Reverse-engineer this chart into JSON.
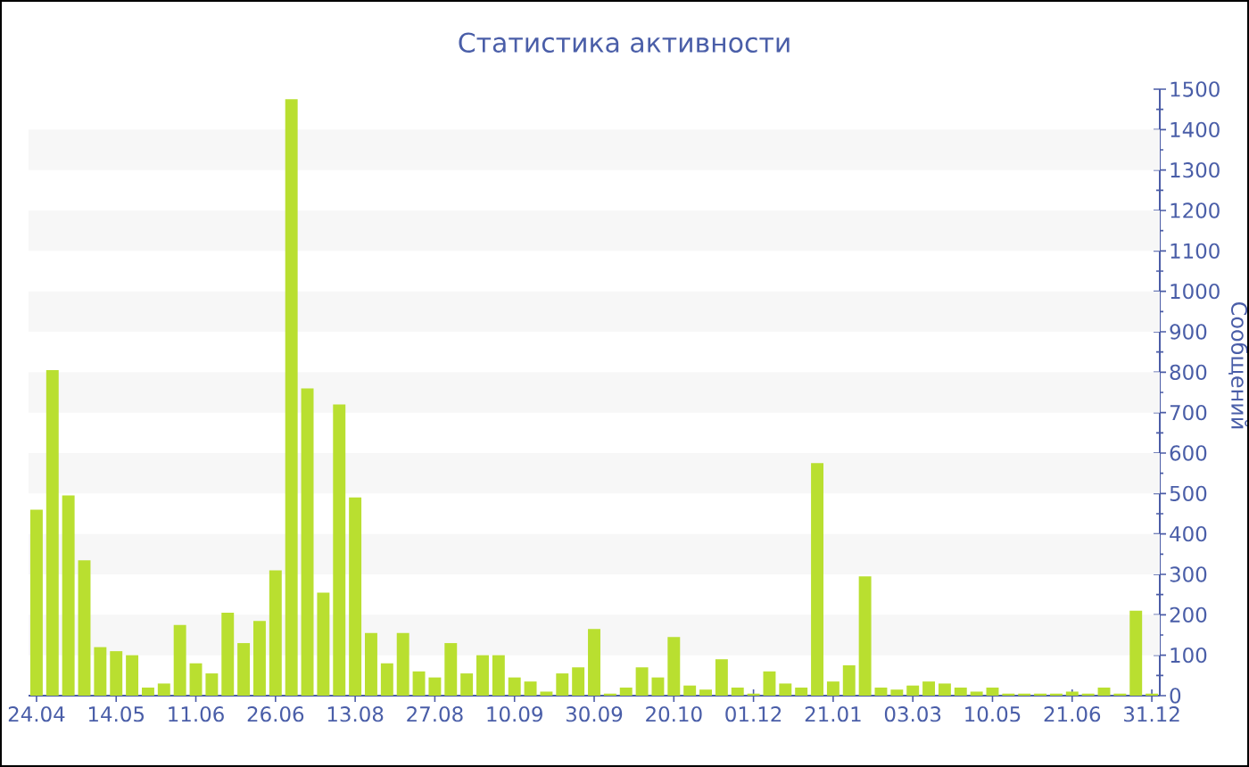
{
  "chart_data": {
    "type": "bar",
    "title": "Статистика активности",
    "ylabel": "Сообщений",
    "categories": [
      "24.04",
      null,
      null,
      null,
      null,
      "14.05",
      null,
      null,
      null,
      null,
      "11.06",
      null,
      null,
      null,
      null,
      "26.06",
      null,
      null,
      null,
      null,
      "13.08",
      null,
      null,
      null,
      null,
      "27.08",
      null,
      null,
      null,
      null,
      "10.09",
      null,
      null,
      null,
      null,
      "30.09",
      null,
      null,
      null,
      null,
      "20.10",
      null,
      null,
      null,
      null,
      "01.12",
      null,
      null,
      null,
      null,
      "21.01",
      null,
      null,
      null,
      null,
      "03.03",
      null,
      null,
      null,
      null,
      "10.05",
      null,
      null,
      null,
      null,
      "21.06",
      null,
      null,
      null,
      null,
      "31.12"
    ],
    "values": [
      460,
      805,
      495,
      335,
      120,
      110,
      100,
      20,
      30,
      175,
      80,
      55,
      205,
      130,
      185,
      310,
      1475,
      760,
      255,
      720,
      490,
      155,
      80,
      155,
      60,
      45,
      130,
      55,
      100,
      100,
      45,
      35,
      10,
      55,
      70,
      165,
      5,
      20,
      70,
      45,
      145,
      25,
      15,
      90,
      20,
      5,
      60,
      30,
      20,
      575,
      35,
      75,
      295,
      20,
      15,
      25,
      35,
      30,
      20,
      10,
      20,
      5,
      5,
      5,
      5,
      10,
      5,
      20,
      5,
      210,
      5
    ],
    "color": "#b9df30",
    "ylim": [
      0,
      1500
    ],
    "yticks": [
      0,
      100,
      200,
      300,
      400,
      500,
      600,
      700,
      800,
      900,
      1000,
      1100,
      1200,
      1300,
      1400,
      1500
    ],
    "bands": [
      {
        "axis": "y",
        "from": 100,
        "to": 200,
        "color": "#f7f7f7"
      },
      {
        "axis": "y",
        "from": 300,
        "to": 400,
        "color": "#f7f7f7"
      },
      {
        "axis": "y",
        "from": 500,
        "to": 600,
        "color": "#f7f7f7"
      },
      {
        "axis": "y",
        "from": 700,
        "to": 800,
        "color": "#f7f7f7"
      },
      {
        "axis": "y",
        "from": 900,
        "to": 1000,
        "color": "#f7f7f7"
      },
      {
        "axis": "y",
        "from": 1100,
        "to": 1200,
        "color": "#f7f7f7"
      },
      {
        "axis": "y",
        "from": 1300,
        "to": 1400,
        "color": "#f7f7f7"
      }
    ]
  }
}
